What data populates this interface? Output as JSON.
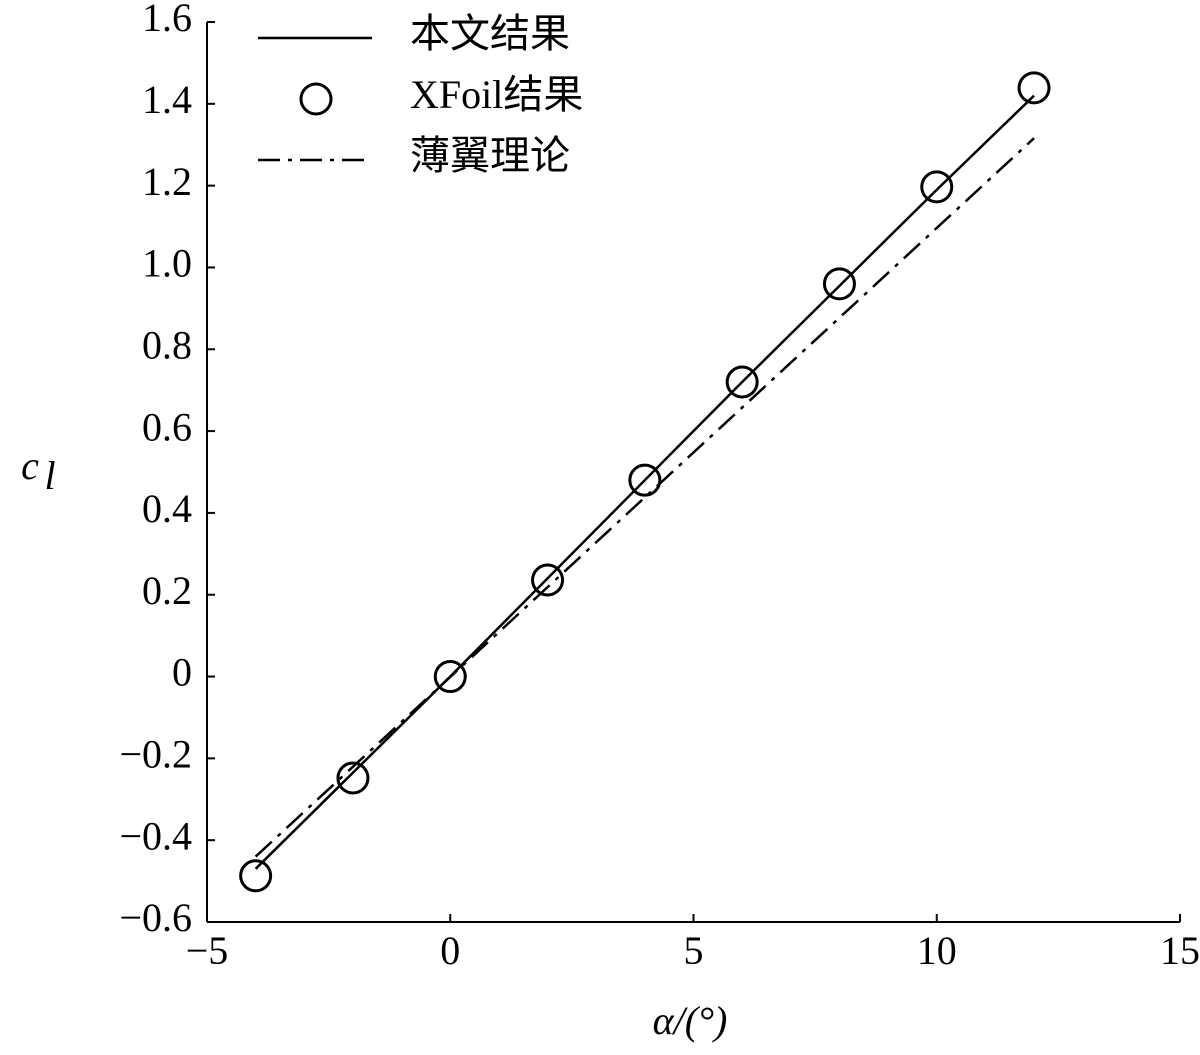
{
  "chart_data": {
    "type": "line",
    "xlabel": "α/(°)",
    "ylabel": "c",
    "ylabel_subscript": "l",
    "xlim": [
      -5,
      15
    ],
    "ylim": [
      -0.6,
      1.6
    ],
    "xticks": [
      {
        "value": -5,
        "label": "−5"
      },
      0,
      5,
      10,
      15
    ],
    "yticks": [
      {
        "value": -0.6,
        "label": "−0.6"
      },
      {
        "value": -0.4,
        "label": "−0.4"
      },
      {
        "value": -0.2,
        "label": "−0.2"
      },
      0,
      0.2,
      0.4,
      0.6,
      0.8,
      {
        "value": 1,
        "label": "1.0"
      },
      1.2,
      1.4,
      1.6
    ],
    "legend": "top-left",
    "series": [
      {
        "name": "本文结果",
        "color": "#000000",
        "style": "solid",
        "x": [
          -4,
          -2,
          0,
          2,
          4,
          6,
          8,
          10,
          12
        ],
        "values": [
          -0.47,
          -0.235,
          0,
          0.24,
          0.48,
          0.72,
          0.955,
          1.19,
          1.42
        ]
      },
      {
        "name": "XFoil结果",
        "color": "#000000",
        "style": "marker",
        "x": [
          -4,
          -2,
          0,
          2,
          4,
          6,
          8,
          10,
          12
        ],
        "values": [
          -0.487,
          -0.248,
          0,
          0.236,
          0.48,
          0.72,
          0.96,
          1.197,
          1.439
        ]
      },
      {
        "name": "薄翼理论",
        "color": "#000000",
        "style": "dashdot",
        "x": [
          -4,
          12
        ],
        "values": [
          -0.44,
          1.316
        ]
      }
    ]
  }
}
